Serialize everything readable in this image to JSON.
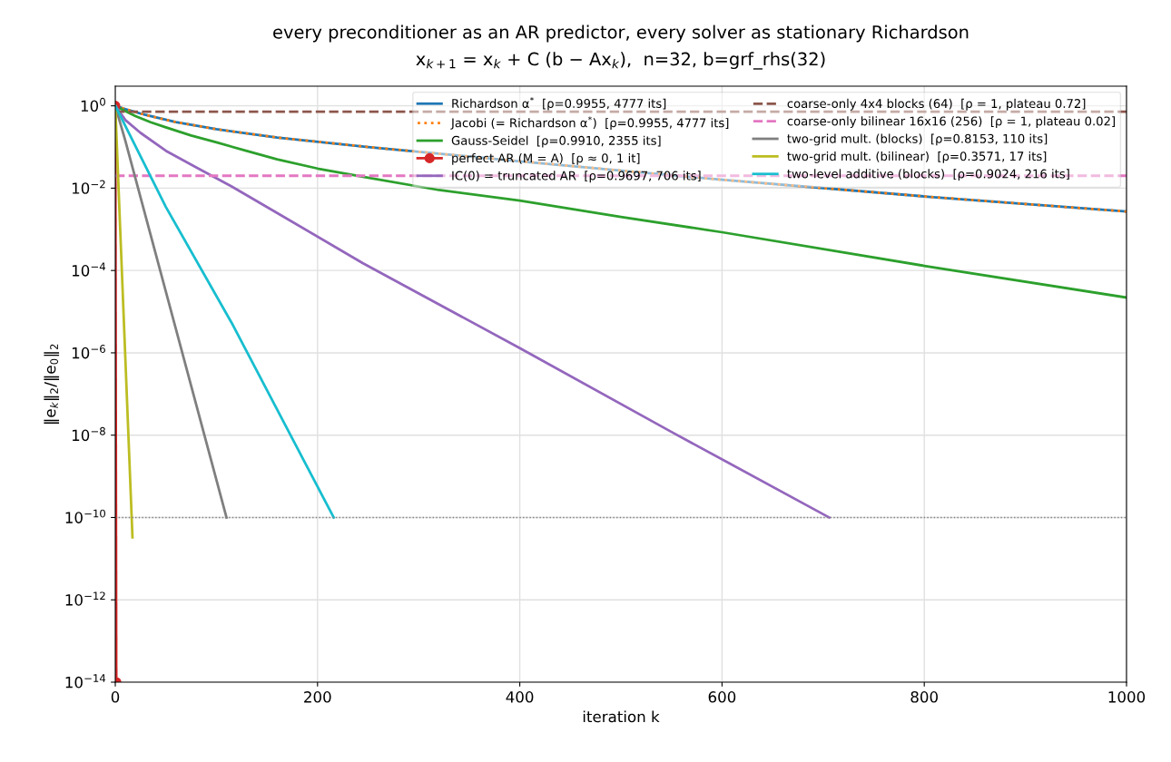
{
  "chart_data": {
    "type": "line",
    "title": "every preconditioner as an AR predictor, every solver as stationary Richardson",
    "subtitle": "x$_{k+1}$ = x$_{k}$ + C (b − Ax$_{k}$),  n=32, b=grf_rhs(32)",
    "xlabel": "iteration k",
    "ylabel": "‖e$_{k}$‖$_{2}$/‖e$_{0}$‖$_{2}$",
    "log": "y",
    "grid": true,
    "legend": "top right",
    "xlim": [
      0,
      1000
    ],
    "xticks": [
      0,
      200,
      400,
      600,
      800,
      1000
    ],
    "ylim": [
      1e-14,
      3
    ],
    "yticks": [
      {
        "value": 1,
        "label": "10$^{0}$"
      },
      {
        "value": 0.01,
        "label": "10$^{−2}$"
      },
      {
        "value": 0.0001,
        "label": "10$^{−4}$"
      },
      {
        "value": 1e-06,
        "label": "10$^{−6}$"
      },
      {
        "value": 1e-08,
        "label": "10$^{−8}$"
      },
      {
        "value": 1e-10,
        "label": "10$^{−10}$"
      },
      {
        "value": 1e-12,
        "label": "10$^{−12}$"
      },
      {
        "value": 1e-14,
        "label": "10$^{−14}$"
      }
    ],
    "ref_lines": [
      {
        "axis": "y",
        "value": 1e-10,
        "color": "#808080",
        "line_style": "dotted"
      }
    ],
    "series": [
      {
        "name": "Richardson α$^{*}$  [ρ=0.9955, 4777 its]",
        "color": "#1f77b4",
        "line_style": "solid",
        "x": [
          0,
          10,
          30,
          60,
          100,
          160,
          250,
          400,
          600,
          800,
          1000
        ],
        "values": [
          1,
          0.83,
          0.6,
          0.4,
          0.27,
          0.17,
          0.1,
          0.045,
          0.016,
          0.0063,
          0.0027
        ]
      },
      {
        "name": "Jacobi (= Richardson α$^{*}$)  [ρ=0.9955, 4777 its]",
        "color": "#ff7f0e",
        "line_style": "dotted",
        "x": [
          0,
          10,
          30,
          60,
          100,
          160,
          250,
          400,
          600,
          800,
          1000
        ],
        "values": [
          1,
          0.83,
          0.6,
          0.4,
          0.27,
          0.17,
          0.1,
          0.045,
          0.016,
          0.0063,
          0.0027
        ]
      },
      {
        "name": "Gauss-Seidel  [ρ=0.9910, 2355 its]",
        "color": "#2ca02c",
        "line_style": "solid",
        "x": [
          0,
          5,
          20,
          35,
          50,
          75,
          100,
          130,
          160,
          200,
          250,
          320,
          400,
          500,
          600,
          800,
          1000
        ],
        "values": [
          1,
          0.85,
          0.56,
          0.4,
          0.3,
          0.19,
          0.13,
          0.08,
          0.05,
          0.03,
          0.018,
          0.009,
          0.005,
          0.002,
          0.00085,
          0.00013,
          2.2e-05
        ]
      },
      {
        "name": "perfect AR (M = A)  [ρ ≈ 0, 1 it]",
        "color": "#d62728",
        "line_style": "solid",
        "marker": "circle",
        "x": [
          0,
          1
        ],
        "values": [
          1,
          1e-14
        ]
      },
      {
        "name": "IC(0) = truncated AR  [ρ=0.9697, 706 its]",
        "color": "#9467bd",
        "line_style": "solid",
        "x": [
          0,
          10,
          25,
          50,
          80,
          115,
          160,
          245,
          400,
          550,
          706
        ],
        "values": [
          1,
          0.45,
          0.22,
          0.081,
          0.032,
          0.011,
          0.0025,
          0.00015,
          1.3e-06,
          1.2e-08,
          1e-10
        ]
      },
      {
        "name": "coarse-only 4x4 blocks (64)  [ρ = 1, plateau 0.72]",
        "color": "#8c564b",
        "line_style": "dashed",
        "x": [
          0,
          1000
        ],
        "values": [
          0.72,
          0.72
        ]
      },
      {
        "name": "coarse-only bilinear 16x16 (256)  [ρ = 1, plateau 0.02]",
        "color": "#e377c2",
        "line_style": "dashed",
        "x": [
          0,
          1000
        ],
        "values": [
          0.02,
          0.02
        ]
      },
      {
        "name": "two-grid mult. (blocks)  [ρ=0.8153, 110 its]",
        "color": "#7f7f7f",
        "line_style": "solid",
        "x": [
          0,
          10,
          110
        ],
        "values": [
          1,
          0.14,
          1e-10
        ]
      },
      {
        "name": "two-grid mult. (bilinear)  [ρ=0.3571, 17 its]",
        "color": "#bcbd22",
        "line_style": "solid",
        "x": [
          0,
          17
        ],
        "values": [
          1,
          3.3e-11
        ]
      },
      {
        "name": "two-level additive (blocks)  [ρ=0.9024, 216 its]",
        "color": "#17becf",
        "line_style": "solid",
        "x": [
          0,
          50,
          115,
          216
        ],
        "values": [
          1,
          0.0035,
          5.4e-06,
          1e-10
        ]
      }
    ]
  }
}
